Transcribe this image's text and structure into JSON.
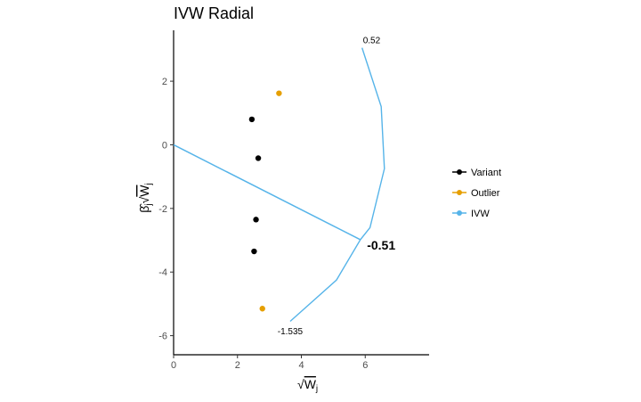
{
  "chart_data": {
    "type": "scatter",
    "title": "IVW Radial",
    "xlabel": "√Wj",
    "ylabel": "β̂j√Wj",
    "xlim": [
      0,
      8
    ],
    "ylim": [
      -6.6,
      3.6
    ],
    "x_ticks": [
      0,
      2,
      4,
      6
    ],
    "y_ticks": [
      -6,
      -4,
      -2,
      0,
      2
    ],
    "x_tick_labels": [
      "0",
      "2",
      "4",
      "6"
    ],
    "y_tick_labels": [
      "-6",
      "-4",
      "-2",
      "0",
      "2"
    ],
    "grid": false,
    "legend_position": "right",
    "colors": {
      "Variant": "#000000",
      "Outlier": "#E69F00",
      "IVW": "#56B4E9"
    },
    "series": [
      {
        "name": "Variant",
        "points": [
          [
            2.45,
            0.8
          ],
          [
            2.65,
            -0.42
          ],
          [
            2.58,
            -2.35
          ],
          [
            2.52,
            -3.35
          ]
        ]
      },
      {
        "name": "Outlier",
        "points": [
          [
            3.3,
            1.62
          ],
          [
            2.78,
            -5.15
          ]
        ]
      }
    ],
    "ivw_line": {
      "name": "IVW",
      "slope": -0.51,
      "x_range": [
        0,
        5.85
      ]
    },
    "ivw_arc": [
      [
        5.9,
        3.05
      ],
      [
        6.5,
        1.2
      ],
      [
        6.6,
        -0.75
      ],
      [
        6.15,
        -2.6
      ],
      [
        5.85,
        -2.98
      ],
      [
        5.1,
        -4.25
      ],
      [
        3.65,
        -5.55
      ]
    ],
    "annotations": [
      {
        "text": "0.52",
        "x": 6.2,
        "y": 3.2,
        "size": "small"
      },
      {
        "text": "-0.51",
        "x": 6.5,
        "y": -3.3,
        "size": "large"
      },
      {
        "text": "-1.535",
        "x": 3.65,
        "y": -5.95,
        "size": "small"
      }
    ],
    "legend": [
      "Variant",
      "Outlier",
      "IVW"
    ]
  }
}
